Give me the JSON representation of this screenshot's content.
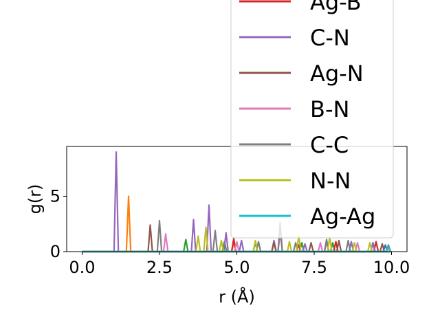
{
  "chart_data": {
    "type": "line",
    "title": "",
    "xlabel": "r (Å)",
    "ylabel": "g(r)",
    "xlim": [
      -0.5,
      10.5
    ],
    "ylim": [
      0,
      9.5
    ],
    "xticks": [
      "0.0",
      "2.5",
      "5.0",
      "7.5",
      "10.0"
    ],
    "yticks": [
      "0",
      "5"
    ],
    "legend": {
      "location": "upper-right",
      "visible_entries": [
        "Ag-B",
        "C-N",
        "Ag-N",
        "B-N",
        "C-C",
        "N-N",
        "Ag-Ag"
      ]
    },
    "series": [
      {
        "name": "",
        "color": "#1f77b4",
        "peaks": [
          [
            9.8,
            0.6
          ]
        ]
      },
      {
        "name": "",
        "color": "#ff7f0e",
        "peaks": [
          [
            1.5,
            5.0
          ],
          [
            4.9,
            0.8
          ]
        ]
      },
      {
        "name": "",
        "color": "#2ca02c",
        "peaks": [
          [
            3.35,
            1.1
          ],
          [
            4.6,
            0.9
          ],
          [
            5.6,
            0.8
          ],
          [
            7.1,
            0.8
          ],
          [
            8.1,
            0.8
          ],
          [
            9.4,
            0.8
          ]
        ]
      },
      {
        "name": "Ag-B",
        "color": "#d62728",
        "peaks": [
          [
            4.9,
            1.2
          ],
          [
            7.0,
            0.6
          ],
          [
            8.2,
            0.9
          ],
          [
            9.5,
            0.9
          ]
        ]
      },
      {
        "name": "C-N",
        "color": "#9467bd",
        "peaks": [
          [
            1.1,
            9.0
          ],
          [
            3.6,
            2.9
          ],
          [
            4.1,
            4.2
          ],
          [
            4.65,
            1.7
          ],
          [
            5.15,
            1.0
          ],
          [
            6.2,
            1.0
          ],
          [
            7.2,
            0.7
          ],
          [
            7.9,
            0.9
          ],
          [
            8.7,
            0.9
          ],
          [
            9.4,
            0.8
          ]
        ]
      },
      {
        "name": "Ag-N",
        "color": "#8c564b",
        "peaks": [
          [
            2.2,
            2.4
          ],
          [
            6.2,
            0.8
          ],
          [
            7.4,
            0.8
          ],
          [
            8.3,
            1.0
          ],
          [
            9.7,
            0.7
          ]
        ]
      },
      {
        "name": "B-N",
        "color": "#e377c2",
        "peaks": [
          [
            2.7,
            1.6
          ],
          [
            5.0,
            0.9
          ],
          [
            6.4,
            1.7
          ],
          [
            7.7,
            0.8
          ],
          [
            8.9,
            0.8
          ]
        ]
      },
      {
        "name": "C-C",
        "color": "#7f7f7f",
        "peaks": [
          [
            2.5,
            2.8
          ],
          [
            4.3,
            1.9
          ],
          [
            5.7,
            0.9
          ],
          [
            6.4,
            2.6
          ],
          [
            6.9,
            0.8
          ],
          [
            7.9,
            1.1
          ],
          [
            8.6,
            1.0
          ],
          [
            9.9,
            0.6
          ]
        ]
      },
      {
        "name": "N-N",
        "color": "#bcbd22",
        "peaks": [
          [
            3.75,
            1.4
          ],
          [
            4.0,
            2.2
          ],
          [
            4.5,
            1.0
          ],
          [
            5.6,
            1.0
          ],
          [
            6.7,
            0.9
          ],
          [
            7.0,
            1.4
          ],
          [
            8.0,
            1.3
          ],
          [
            8.8,
            0.8
          ],
          [
            9.3,
            0.8
          ]
        ]
      },
      {
        "name": "Ag-Ag",
        "color": "#17becf",
        "peaks": [
          [
            9.9,
            0.4
          ]
        ]
      }
    ]
  }
}
